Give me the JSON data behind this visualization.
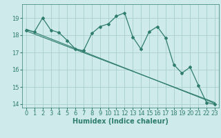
{
  "bg_color": "#ceeaea",
  "grid_color": "#aacece",
  "line_color": "#2e7d6e",
  "xlabel": "Humidex (Indice chaleur)",
  "xlabel_fontsize": 7,
  "tick_fontsize": 6,
  "xlim": [
    -0.5,
    23.5
  ],
  "ylim": [
    13.8,
    19.8
  ],
  "yticks": [
    14,
    15,
    16,
    17,
    18,
    19
  ],
  "xticks": [
    0,
    1,
    2,
    3,
    4,
    5,
    6,
    7,
    8,
    9,
    10,
    11,
    12,
    13,
    14,
    15,
    16,
    17,
    18,
    19,
    20,
    21,
    22,
    23
  ],
  "series1_x": [
    0,
    1,
    2,
    3,
    4,
    5,
    6,
    7,
    8,
    9,
    10,
    11,
    12,
    13,
    14,
    15,
    16,
    17,
    18,
    19,
    20,
    21,
    22,
    23
  ],
  "series1_y": [
    18.3,
    18.2,
    19.0,
    18.3,
    18.15,
    17.7,
    17.2,
    17.1,
    18.1,
    18.5,
    18.65,
    19.1,
    19.3,
    17.9,
    17.2,
    18.2,
    18.5,
    17.85,
    16.3,
    15.8,
    16.15,
    15.1,
    14.1,
    14.0
  ],
  "series2_x": [
    0,
    23
  ],
  "series2_y": [
    18.35,
    14.05
  ],
  "series3_x": [
    0,
    23
  ],
  "series3_y": [
    18.25,
    14.1
  ]
}
